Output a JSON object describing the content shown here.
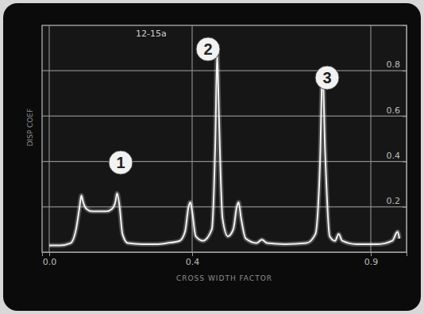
{
  "chart_data": {
    "type": "line",
    "title": "12-15a",
    "ylabel": "DISP COEF",
    "xlabel": "CROSS WIDTH FACTOR",
    "x": [
      0.0,
      0.03,
      0.06,
      0.075,
      0.085,
      0.09,
      0.095,
      0.105,
      0.12,
      0.14,
      0.16,
      0.175,
      0.185,
      0.19,
      0.197,
      0.205,
      0.22,
      0.26,
      0.3,
      0.33,
      0.365,
      0.38,
      0.39,
      0.395,
      0.4,
      0.41,
      0.43,
      0.455,
      0.465,
      0.47,
      0.475,
      0.485,
      0.5,
      0.515,
      0.525,
      0.53,
      0.537,
      0.55,
      0.58,
      0.595,
      0.61,
      0.66,
      0.72,
      0.745,
      0.758,
      0.765,
      0.772,
      0.785,
      0.8,
      0.81,
      0.82,
      0.86,
      0.92,
      0.96,
      0.975,
      0.98
    ],
    "values": [
      0.03,
      0.03,
      0.04,
      0.1,
      0.2,
      0.25,
      0.22,
      0.19,
      0.18,
      0.18,
      0.18,
      0.19,
      0.22,
      0.26,
      0.2,
      0.08,
      0.04,
      0.035,
      0.035,
      0.04,
      0.05,
      0.09,
      0.2,
      0.22,
      0.18,
      0.07,
      0.05,
      0.1,
      0.5,
      0.88,
      0.6,
      0.15,
      0.07,
      0.1,
      0.2,
      0.22,
      0.15,
      0.06,
      0.04,
      0.055,
      0.04,
      0.035,
      0.04,
      0.08,
      0.4,
      0.8,
      0.45,
      0.07,
      0.05,
      0.08,
      0.05,
      0.035,
      0.035,
      0.05,
      0.09,
      0.06
    ],
    "color": "#f4f4f4",
    "xlim": [
      -0.02,
      1.0
    ],
    "xticks": [
      {
        "value": 0,
        "label": "0.0"
      },
      0.4,
      0.9
    ],
    "ylim": [
      0,
      1
    ],
    "yticks": [
      0.2,
      0.4,
      0.6,
      0.8
    ],
    "grid": true,
    "annotations": [
      "1",
      "2",
      "3"
    ]
  }
}
